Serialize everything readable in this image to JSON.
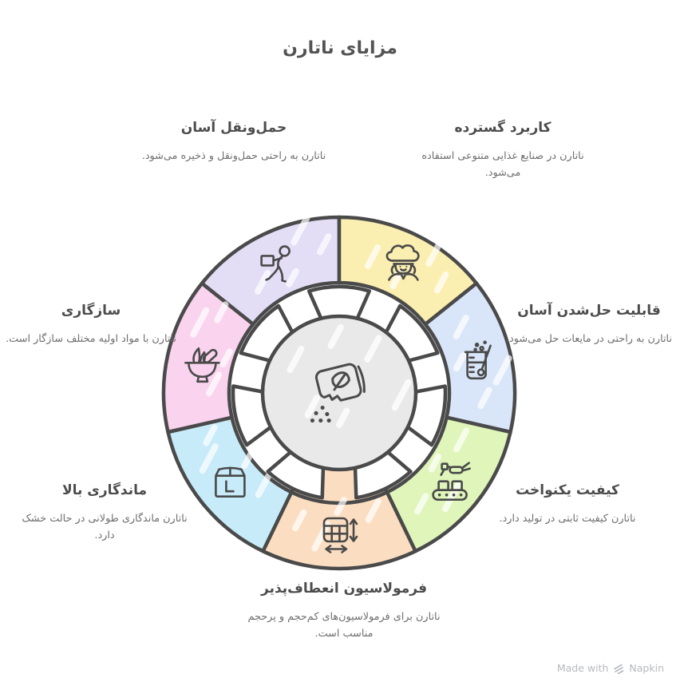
{
  "page": {
    "title": "مزایای ناتارن",
    "background": "#ffffff"
  },
  "wheel": {
    "outline_color": "#4A4A4A",
    "center_fill": "#E9E9E9",
    "center_icon": "powder-packet-leaf-icon",
    "segments": [
      {
        "id": "transport",
        "icon": "person-carrying-box-icon",
        "color": "#E3DEF6"
      },
      {
        "id": "application",
        "icon": "chef-icon",
        "color": "#FAEFB0"
      },
      {
        "id": "solubility",
        "icon": "beaker-stir-icon",
        "color": "#D9E6F9"
      },
      {
        "id": "quality",
        "icon": "conveyor-robot-icon",
        "color": "#DFF5BA"
      },
      {
        "id": "formulation",
        "icon": "table-resize-icon",
        "color": "#FBDEC1",
        "connected_to_center": true
      },
      {
        "id": "shelf_life",
        "icon": "package-box-icon",
        "color": "#C7EBF9"
      },
      {
        "id": "compatibility",
        "icon": "mortar-bowl-icon",
        "color": "#FAD3EE"
      }
    ]
  },
  "sections": {
    "transport": {
      "title": "حمل‌ونقل آسان",
      "desc": "ناتارن به راحتی حمل‌ونقل و ذخیره می‌شود."
    },
    "application": {
      "title": "کاربرد گسترده",
      "desc": "ناتارن در صنایع غذایی متنوعی استفاده می‌شود."
    },
    "solubility": {
      "title": "قابلیت حل‌شدن آسان",
      "desc": "ناتارن به راحتی در مایعات حل می‌شود."
    },
    "quality": {
      "title": "کیفیت یکنواخت",
      "desc": "ناتارن کیفیت ثابتی در تولید دارد."
    },
    "formulation": {
      "title": "فرمولاسیون انعطاف‌پذیر",
      "desc": "ناتارن برای فرمولاسیون‌های کم‌حجم و پرحجم مناسب است."
    },
    "shelf_life": {
      "title": "ماندگاری بالا",
      "desc": "ناتارن ماندگاری طولانی در حالت خشک دارد."
    },
    "compatibility": {
      "title": "سازگاری",
      "desc": "ناتارن با مواد اولیه مختلف سازگار است."
    }
  },
  "footer": {
    "made_with": "Made with",
    "brand": "Napkin"
  }
}
